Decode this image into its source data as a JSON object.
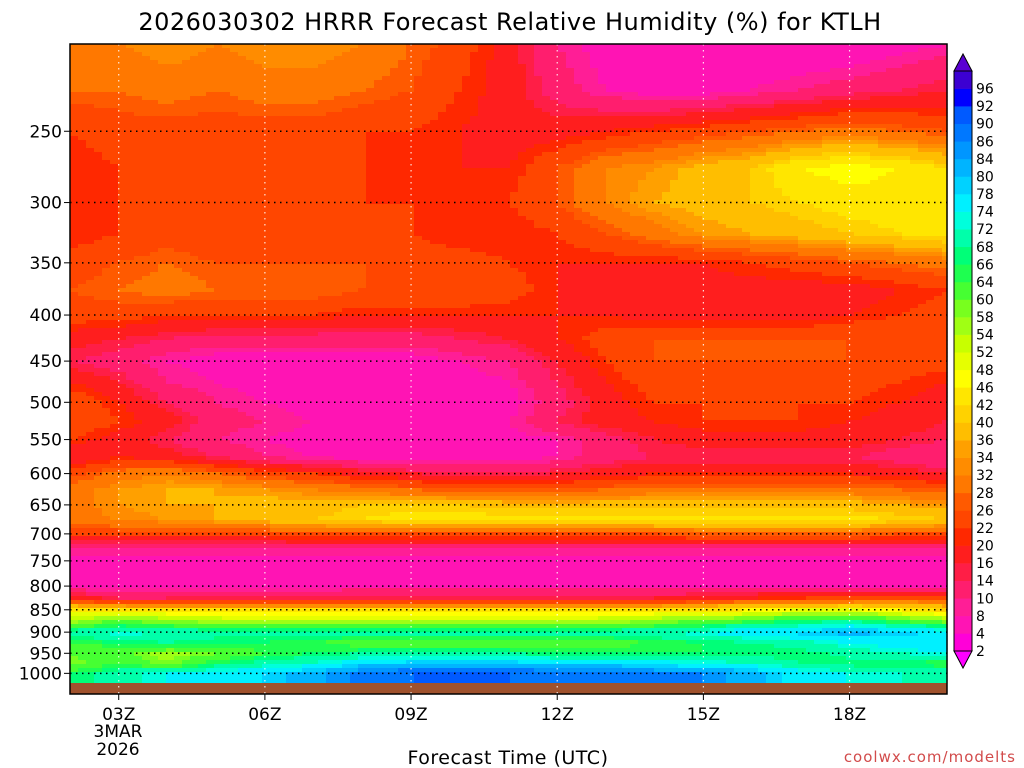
{
  "chart_data": {
    "type": "heatmap",
    "title": "2026030302 HRRR Forecast Relative Humidity (%) for KTLH",
    "xlabel": "Forecast Time (UTC)",
    "ylabel": "",
    "credit": "coolwx.com/modelts",
    "x_ticks": [
      "03Z",
      "06Z",
      "09Z",
      "12Z",
      "15Z",
      "18Z"
    ],
    "x_tick_hours": [
      3,
      6,
      9,
      12,
      15,
      18
    ],
    "x_date_line1": "3MAR",
    "x_date_line2": "2026",
    "xlim_hours": [
      2,
      20
    ],
    "y_ticks": [
      250,
      300,
      350,
      400,
      450,
      500,
      550,
      600,
      650,
      700,
      750,
      800,
      850,
      900,
      950,
      1000
    ],
    "ylim_hpa": [
      200,
      1025
    ],
    "y_scale": "log-pressure (inverted)",
    "grid": true,
    "colorbar": {
      "levels": [
        2,
        4,
        8,
        10,
        14,
        16,
        20,
        22,
        26,
        28,
        32,
        34,
        36,
        40,
        42,
        46,
        48,
        52,
        54,
        58,
        60,
        64,
        66,
        68,
        72,
        74,
        78,
        80,
        84,
        86,
        90,
        92,
        96
      ],
      "colors": [
        "#ff00ff",
        "#ff00d8",
        "#ff14b4",
        "#ff1e96",
        "#ff1e6e",
        "#ff1e46",
        "#ff1e1e",
        "#ff2800",
        "#ff4600",
        "#ff5a00",
        "#ff7800",
        "#ff8c00",
        "#ffa000",
        "#ffbe00",
        "#ffd200",
        "#ffe600",
        "#ffff00",
        "#e6ff00",
        "#c8ff00",
        "#a0ff14",
        "#78ff1e",
        "#46ff32",
        "#1eff50",
        "#00ff78",
        "#00ffaa",
        "#00ffdc",
        "#00f0ff",
        "#00d2ff",
        "#00b4ff",
        "#0096ff",
        "#0078ff",
        "#005aff",
        "#0000ff",
        "#3c00d2",
        "#5a00d2"
      ]
    },
    "hours": [
      2,
      3,
      4,
      5,
      6,
      7,
      8,
      9,
      10,
      11,
      12,
      13,
      14,
      15,
      16,
      17,
      18,
      19,
      20
    ],
    "levels_hpa": [
      1000,
      975,
      950,
      925,
      900,
      875,
      850,
      825,
      800,
      775,
      750,
      725,
      700,
      675,
      650,
      625,
      600,
      575,
      550,
      525,
      500,
      475,
      450,
      425,
      400,
      375,
      350,
      325,
      300,
      275,
      250,
      225,
      200
    ],
    "rh": [
      [
        66,
        70,
        74,
        76,
        78,
        82,
        88,
        90,
        90,
        90,
        89,
        88,
        88,
        86,
        82,
        76,
        74,
        72,
        70
      ],
      [
        58,
        64,
        58,
        66,
        70,
        72,
        78,
        80,
        80,
        80,
        78,
        78,
        76,
        74,
        72,
        68,
        66,
        66,
        64
      ],
      [
        60,
        62,
        56,
        60,
        64,
        66,
        68,
        68,
        68,
        68,
        66,
        66,
        66,
        66,
        66,
        66,
        70,
        72,
        74
      ],
      [
        64,
        66,
        68,
        66,
        66,
        64,
        62,
        62,
        62,
        62,
        62,
        62,
        64,
        66,
        68,
        70,
        74,
        76,
        78
      ],
      [
        70,
        74,
        72,
        70,
        70,
        70,
        70,
        70,
        70,
        70,
        70,
        70,
        72,
        74,
        78,
        80,
        82,
        80,
        76
      ],
      [
        56,
        60,
        58,
        56,
        54,
        54,
        54,
        54,
        54,
        54,
        54,
        56,
        58,
        60,
        64,
        66,
        68,
        64,
        58
      ],
      [
        44,
        44,
        42,
        42,
        42,
        42,
        42,
        42,
        42,
        42,
        42,
        42,
        42,
        44,
        46,
        48,
        48,
        46,
        40
      ],
      [
        20,
        14,
        14,
        16,
        16,
        16,
        16,
        16,
        16,
        16,
        16,
        16,
        16,
        18,
        20,
        22,
        24,
        26,
        26
      ],
      [
        6,
        6,
        6,
        6,
        6,
        6,
        8,
        8,
        8,
        8,
        8,
        8,
        8,
        8,
        8,
        6,
        6,
        6,
        8
      ],
      [
        4,
        4,
        4,
        4,
        4,
        4,
        4,
        4,
        4,
        4,
        4,
        4,
        4,
        4,
        4,
        4,
        4,
        4,
        6
      ],
      [
        6,
        6,
        6,
        6,
        6,
        6,
        6,
        6,
        6,
        6,
        6,
        6,
        6,
        6,
        6,
        6,
        6,
        6,
        6
      ],
      [
        10,
        10,
        10,
        10,
        10,
        10,
        10,
        10,
        10,
        10,
        10,
        10,
        10,
        10,
        10,
        10,
        10,
        10,
        10
      ],
      [
        22,
        24,
        24,
        24,
        24,
        26,
        26,
        26,
        26,
        26,
        26,
        26,
        26,
        28,
        28,
        28,
        28,
        26,
        26
      ],
      [
        30,
        32,
        34,
        36,
        38,
        40,
        42,
        44,
        44,
        44,
        44,
        44,
        44,
        44,
        44,
        44,
        44,
        42,
        40
      ],
      [
        30,
        34,
        36,
        36,
        38,
        38,
        40,
        40,
        40,
        38,
        38,
        38,
        38,
        38,
        38,
        38,
        38,
        36,
        34
      ],
      [
        30,
        34,
        36,
        36,
        34,
        32,
        30,
        28,
        26,
        26,
        26,
        28,
        30,
        30,
        30,
        30,
        30,
        28,
        26
      ],
      [
        24,
        30,
        32,
        28,
        24,
        22,
        18,
        16,
        14,
        14,
        16,
        18,
        20,
        20,
        20,
        20,
        20,
        18,
        16
      ],
      [
        16,
        20,
        18,
        14,
        10,
        8,
        6,
        6,
        6,
        6,
        8,
        12,
        14,
        14,
        14,
        14,
        14,
        12,
        10
      ],
      [
        22,
        18,
        14,
        10,
        8,
        6,
        6,
        4,
        4,
        6,
        8,
        12,
        16,
        18,
        18,
        18,
        18,
        16,
        14
      ],
      [
        26,
        22,
        18,
        12,
        10,
        8,
        6,
        6,
        6,
        8,
        14,
        18,
        20,
        22,
        22,
        22,
        20,
        18,
        16
      ],
      [
        26,
        20,
        14,
        10,
        8,
        6,
        6,
        4,
        4,
        6,
        12,
        18,
        22,
        22,
        22,
        22,
        22,
        20,
        18
      ],
      [
        20,
        16,
        10,
        8,
        6,
        6,
        4,
        4,
        6,
        8,
        14,
        20,
        24,
        24,
        24,
        24,
        24,
        22,
        20
      ],
      [
        14,
        12,
        8,
        6,
        6,
        6,
        6,
        6,
        8,
        10,
        16,
        22,
        26,
        26,
        26,
        26,
        26,
        24,
        24
      ],
      [
        18,
        16,
        14,
        12,
        12,
        12,
        12,
        12,
        14,
        16,
        20,
        24,
        26,
        26,
        26,
        26,
        26,
        26,
        26
      ],
      [
        24,
        24,
        22,
        22,
        22,
        22,
        20,
        20,
        20,
        20,
        20,
        20,
        18,
        18,
        18,
        18,
        20,
        22,
        24
      ],
      [
        26,
        28,
        30,
        28,
        28,
        28,
        26,
        26,
        26,
        24,
        20,
        18,
        18,
        18,
        18,
        18,
        18,
        20,
        22
      ],
      [
        24,
        26,
        28,
        26,
        26,
        26,
        26,
        24,
        24,
        22,
        20,
        20,
        20,
        20,
        22,
        24,
        26,
        28,
        30
      ],
      [
        20,
        22,
        24,
        22,
        22,
        22,
        22,
        22,
        20,
        20,
        22,
        26,
        30,
        34,
        36,
        38,
        40,
        42,
        44
      ],
      [
        22,
        22,
        24,
        24,
        24,
        22,
        22,
        22,
        22,
        22,
        26,
        32,
        36,
        38,
        40,
        42,
        44,
        44,
        44
      ],
      [
        20,
        22,
        22,
        22,
        22,
        22,
        22,
        20,
        20,
        20,
        26,
        32,
        34,
        38,
        40,
        46,
        48,
        46,
        42
      ],
      [
        22,
        24,
        24,
        24,
        24,
        24,
        22,
        22,
        20,
        18,
        18,
        20,
        22,
        24,
        26,
        28,
        30,
        28,
        26
      ],
      [
        28,
        28,
        30,
        28,
        30,
        30,
        28,
        26,
        22,
        18,
        12,
        8,
        6,
        6,
        8,
        10,
        12,
        14,
        16
      ],
      [
        32,
        32,
        34,
        32,
        34,
        34,
        32,
        28,
        24,
        18,
        10,
        6,
        4,
        4,
        4,
        4,
        4,
        6,
        8
      ]
    ]
  }
}
